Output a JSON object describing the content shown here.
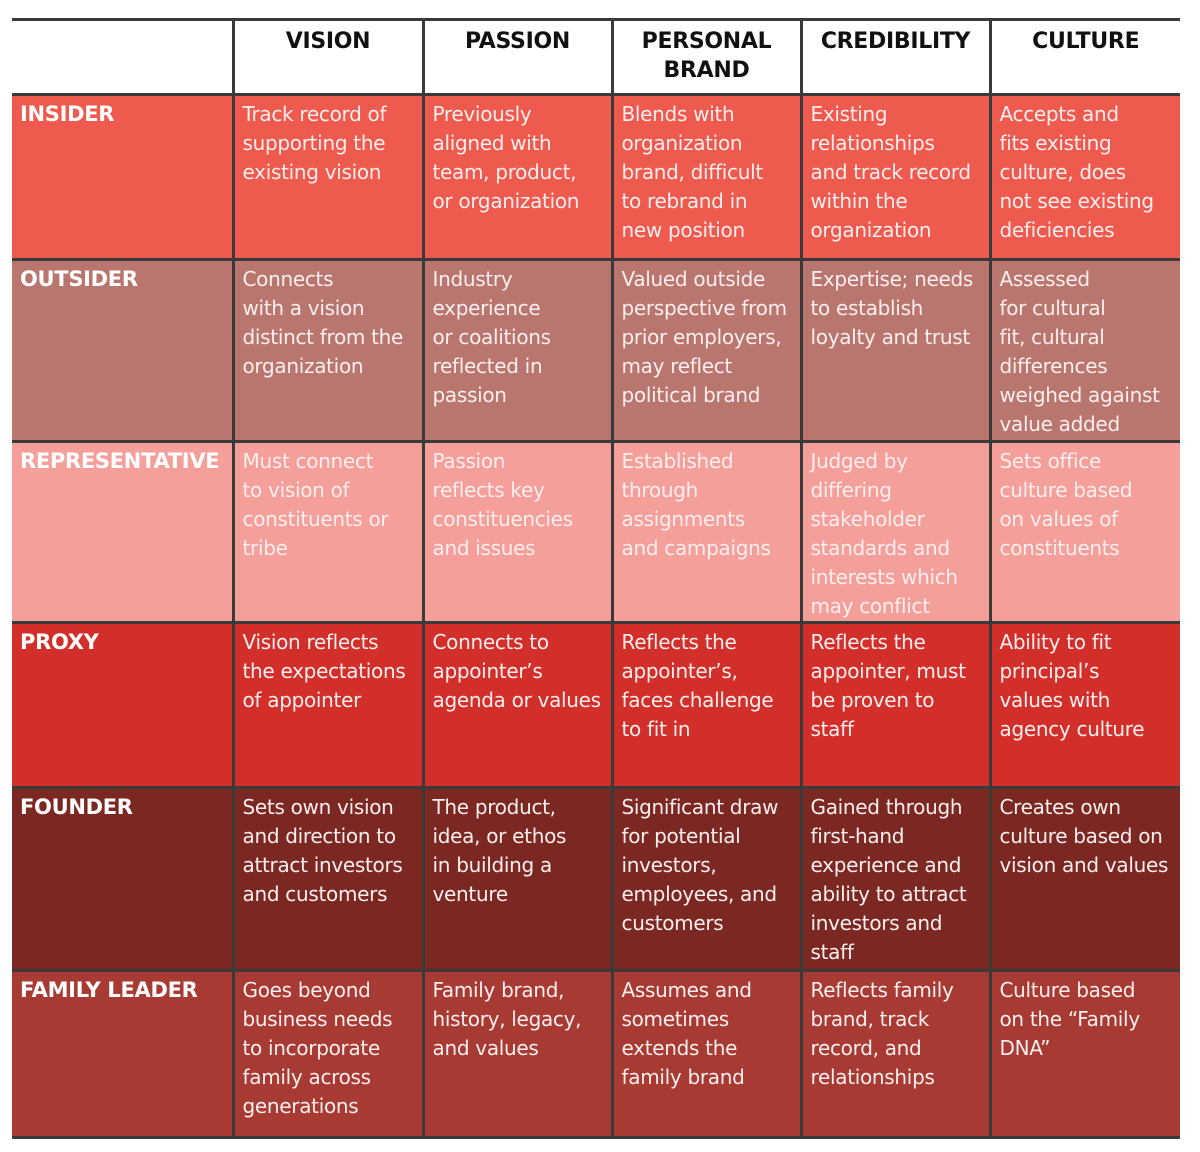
{
  "columns": [
    "VISION",
    "PASSION",
    "PERSONAL\nBRAND",
    "CREDIBILITY",
    "CULTURE"
  ],
  "colors": {
    "border": "#3a3a3a",
    "insider": "#ef5a4f",
    "outsider": "#b9766f",
    "representative": "#f49f9a",
    "proxy": "#d22f2b",
    "founder": "#7b2823",
    "family_leader": "#a73b33"
  },
  "rows": [
    {
      "key": "insider",
      "label": "INSIDER",
      "cells": [
        "Track record of\nsupporting the\nexisting vision",
        "Previously\naligned with\nteam, product,\nor organization",
        "Blends with\norganization\nbrand, difficult\nto rebrand in\nnew position",
        "Existing\nrelationships\nand track record\nwithin the\norganization",
        "Accepts and\nfits existing\nculture, does\nnot see existing\ndeficiencies"
      ]
    },
    {
      "key": "outsider",
      "label": "OUTSIDER",
      "cells": [
        "Connects\nwith a vision\ndistinct from the\norganization",
        "Industry\nexperience\nor coalitions\nreflected in\npassion",
        "Valued outside\nperspective from\nprior employers,\nmay reflect\npolitical brand",
        "Expertise; needs\nto establish\nloyalty and trust",
        "Assessed\nfor cultural\nfit, cultural\ndifferences\nweighed against\nvalue added"
      ]
    },
    {
      "key": "representative",
      "label": "REPRESENTATIVE",
      "cells": [
        "Must connect\nto vision of\nconstituents or\ntribe",
        "Passion\nreflects key\nconstituencies\nand issues",
        "Established\nthrough\nassignments\nand campaigns",
        "Judged by\ndiffering\nstakeholder\nstandards and\ninterests which\nmay conflict",
        "Sets office\nculture based\non values of\nconstituents"
      ]
    },
    {
      "key": "proxy",
      "label": "PROXY",
      "cells": [
        "Vision reflects\nthe expectations\nof appointer",
        "Connects to\nappointer’s\nagenda or values",
        "Reflects the\nappointer’s,\nfaces challenge\nto fit in",
        "Reflects the\nappointer, must\nbe proven to\nstaff",
        "Ability to fit\nprincipal’s\nvalues with\nagency culture"
      ]
    },
    {
      "key": "founder",
      "label": "FOUNDER",
      "cells": [
        "Sets own vision\nand direction to\nattract investors\nand customers",
        "The product,\nidea, or ethos\nin building a\nventure",
        "Significant draw\nfor potential\ninvestors,\nemployees, and\ncustomers",
        "Gained through\nfirst-hand\nexperience and\nability to attract\ninvestors and\nstaff",
        "Creates own\nculture based on\nvision and values"
      ]
    },
    {
      "key": "family_leader",
      "label": "FAMILY LEADER",
      "cells": [
        "Goes beyond\nbusiness needs\nto incorporate\nfamily across\ngenerations",
        "Family brand,\nhistory, legacy,\nand values",
        "Assumes and\nsometimes\nextends the\nfamily brand",
        "Reflects family\nbrand, track\nrecord, and\nrelationships",
        "Culture based\non the “Family\nDNA”"
      ]
    }
  ]
}
